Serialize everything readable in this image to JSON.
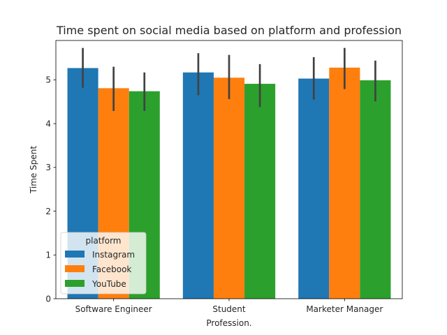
{
  "chart_data": {
    "type": "bar",
    "title": "Time spent on social media based on platform and profession",
    "xlabel": "Profession.",
    "ylabel": "Time Spent",
    "categories": [
      "Software Engineer",
      "Student",
      "Marketer Manager"
    ],
    "ylim": [
      0,
      5.9
    ],
    "yticks": [
      0,
      1,
      2,
      3,
      4,
      5
    ],
    "legend": {
      "title": "platform",
      "placement": "lower-left"
    },
    "series": [
      {
        "name": "Instagram",
        "color": "#1f77b4",
        "values": [
          5.27,
          5.17,
          5.03
        ],
        "ci_low": [
          4.82,
          4.65,
          4.55
        ],
        "ci_high": [
          5.73,
          5.61,
          5.52
        ]
      },
      {
        "name": "Facebook",
        "color": "#ff7f0e",
        "values": [
          4.81,
          5.05,
          5.28
        ],
        "ci_low": [
          4.29,
          4.56,
          4.79
        ],
        "ci_high": [
          5.3,
          5.57,
          5.73
        ]
      },
      {
        "name": "YouTube",
        "color": "#2ca02c",
        "values": [
          4.74,
          4.91,
          4.99
        ],
        "ci_low": [
          4.29,
          4.38,
          4.51
        ],
        "ci_high": [
          5.17,
          5.36,
          5.44
        ]
      }
    ],
    "errorbar_color": "#424242",
    "grid": false
  }
}
